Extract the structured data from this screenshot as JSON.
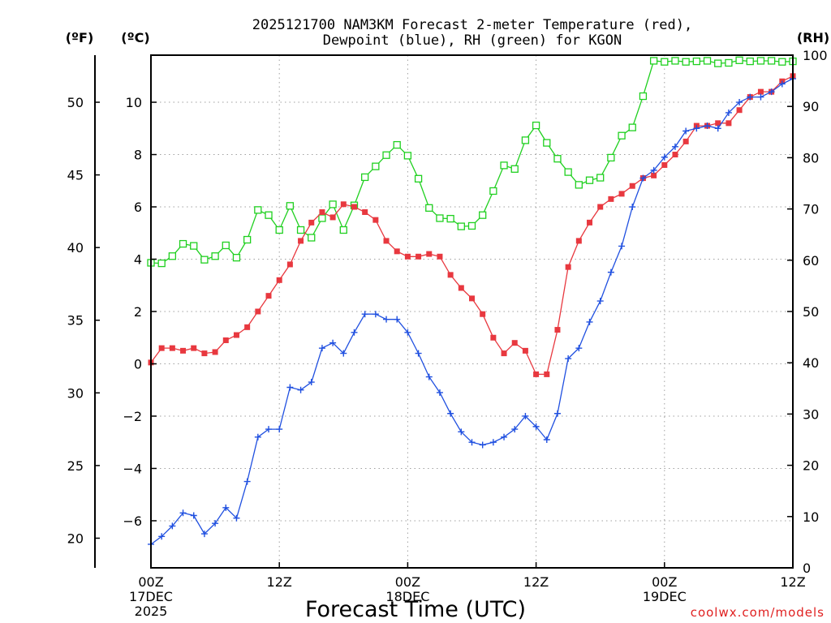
{
  "chart_data": {
    "type": "line",
    "title_line1": "2025121700 NAM3KM Forecast 2-meter Temperature (red),",
    "title_line2": "Dewpoint (blue), RH (green) for KGON",
    "xlabel": "Forecast Time (UTC)",
    "credit": "coolwx.com/models",
    "units": {
      "fahrenheit": "(ºF)",
      "celsius": "(ºC)",
      "rh": "(RH)"
    },
    "xlim": [
      0,
      60
    ],
    "ylim_c": [
      -7.8,
      11.8
    ],
    "ylim_rh": [
      0,
      100
    ],
    "x_ticks": [
      {
        "x": 0,
        "l1": "00Z",
        "l2": "17DEC",
        "l3": "2025"
      },
      {
        "x": 12,
        "l1": "12Z",
        "l2": "",
        "l3": ""
      },
      {
        "x": 24,
        "l1": "00Z",
        "l2": "18DEC",
        "l3": ""
      },
      {
        "x": 36,
        "l1": "12Z",
        "l2": "",
        "l3": ""
      },
      {
        "x": 48,
        "l1": "00Z",
        "l2": "19DEC",
        "l3": ""
      },
      {
        "x": 60,
        "l1": "12Z",
        "l2": "",
        "l3": ""
      }
    ],
    "celsius_ticks": [
      -6,
      -4,
      -2,
      0,
      2,
      4,
      6,
      8,
      10
    ],
    "celsius_tick_labels": [
      "−6",
      "−4",
      "−2",
      "0",
      "2",
      "4",
      "6",
      "8",
      "10"
    ],
    "fahrenheit_ticks": [
      20,
      25,
      30,
      35,
      40,
      45,
      50
    ],
    "fahrenheit_tick_labels": [
      "20",
      "25",
      "30",
      "35",
      "40",
      "45",
      "50"
    ],
    "rh_ticks": [
      0,
      10,
      20,
      30,
      40,
      50,
      60,
      70,
      80,
      90,
      100
    ],
    "rh_tick_labels": [
      "0",
      "10",
      "20",
      "30",
      "40",
      "50",
      "60",
      "70",
      "80",
      "90",
      "100"
    ],
    "series": [
      {
        "name": "Temperature",
        "axis": "celsius",
        "color": "#e8383f",
        "marker": "filled-square",
        "values": [
          0.05,
          0.6,
          0.6,
          0.5,
          0.6,
          0.4,
          0.45,
          0.9,
          1.1,
          1.4,
          2.0,
          2.6,
          3.2,
          3.8,
          4.7,
          5.4,
          5.8,
          5.6,
          6.1,
          6.0,
          5.8,
          5.5,
          4.7,
          4.3,
          4.1,
          4.1,
          4.2,
          4.1,
          3.4,
          2.9,
          2.5,
          1.9,
          1.0,
          0.4,
          0.8,
          0.5,
          -0.4,
          -0.4,
          1.3,
          3.7,
          4.7,
          5.4,
          6.0,
          6.3,
          6.5,
          6.8,
          7.1,
          7.2,
          7.6,
          8.0,
          8.5,
          9.1,
          9.1,
          9.2,
          9.2,
          9.7,
          10.2,
          10.4,
          10.4,
          10.8,
          11.0
        ]
      },
      {
        "name": "Dewpoint",
        "axis": "celsius",
        "color": "#2050e0",
        "marker": "plus",
        "values": [
          -6.9,
          -6.6,
          -6.2,
          -5.7,
          -5.8,
          -6.5,
          -6.1,
          -5.5,
          -5.9,
          -4.5,
          -2.8,
          -2.5,
          -2.5,
          -0.9,
          -1.0,
          -0.7,
          0.6,
          0.8,
          0.4,
          1.2,
          1.9,
          1.9,
          1.7,
          1.7,
          1.2,
          0.4,
          -0.5,
          -1.1,
          -1.9,
          -2.6,
          -3.0,
          -3.1,
          -3.0,
          -2.8,
          -2.5,
          -2.0,
          -2.4,
          -2.9,
          -1.9,
          0.2,
          0.6,
          1.6,
          2.4,
          3.5,
          4.5,
          6.0,
          7.1,
          7.4,
          7.9,
          8.3,
          8.9,
          9.0,
          9.1,
          9.0,
          9.6,
          10.0,
          10.2,
          10.2,
          10.4,
          10.7,
          10.9
        ]
      },
      {
        "name": "Relative Humidity",
        "axis": "rh",
        "color": "#20d020",
        "marker": "open-square",
        "values": [
          59.5,
          59.4,
          60.8,
          63.2,
          62.8,
          60.1,
          60.8,
          62.9,
          60.5,
          64.0,
          69.8,
          68.8,
          65.9,
          70.6,
          65.9,
          64.4,
          68.2,
          70.9,
          65.9,
          70.7,
          76.2,
          78.3,
          80.5,
          82.5,
          80.4,
          75.9,
          70.2,
          68.2,
          68.1,
          66.6,
          66.7,
          68.8,
          73.5,
          78.5,
          77.8,
          83.4,
          86.3,
          82.9,
          79.8,
          77.2,
          74.7,
          75.6,
          76.1,
          80.0,
          84.3,
          85.9,
          92.0,
          98.9,
          98.7,
          98.9,
          98.7,
          98.8,
          98.9,
          98.4,
          98.5,
          99.0,
          98.8,
          98.9,
          98.9,
          98.7,
          98.8
        ]
      }
    ]
  }
}
